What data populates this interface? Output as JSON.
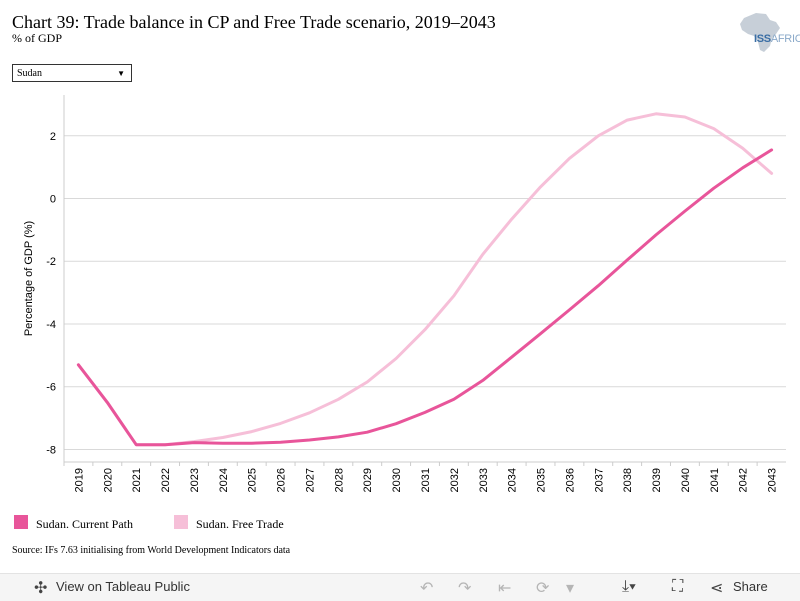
{
  "header": {
    "title": "Chart 39: Trade balance in CP and Free Trade scenario, 2019–2043",
    "subtitle": "% of GDP",
    "logo_text": "ISS",
    "logo_suffix": "AFRICA"
  },
  "filter": {
    "selected": "Sudan"
  },
  "source": "Source: IFs 7.63 initialising from World Development Indicators data",
  "toolbar": {
    "view_label": "View on Tableau Public",
    "share_label": "Share"
  },
  "colors": {
    "current_path": "#e8559a",
    "free_trade": "#f6bfd8",
    "grid": "#d9d9d9"
  },
  "chart_data": {
    "type": "line",
    "ylabel": "Percentage of GDP (%)",
    "xlabel": "",
    "ylim": [
      -8.4,
      3.3
    ],
    "yticks": [
      2,
      0,
      -2,
      -4,
      -6,
      -8
    ],
    "x": [
      2019,
      2020,
      2021,
      2022,
      2023,
      2024,
      2025,
      2026,
      2027,
      2028,
      2029,
      2030,
      2031,
      2032,
      2033,
      2034,
      2035,
      2036,
      2037,
      2038,
      2039,
      2040,
      2041,
      2042,
      2043
    ],
    "grid": true,
    "legend_position": "bottom-left",
    "series": [
      {
        "name": "Sudan. Current Path",
        "values": [
          -5.3,
          -6.5,
          -7.85,
          -7.85,
          -7.78,
          -7.8,
          -7.8,
          -7.77,
          -7.7,
          -7.6,
          -7.45,
          -7.18,
          -6.82,
          -6.4,
          -5.8,
          -5.06,
          -4.31,
          -3.55,
          -2.78,
          -1.96,
          -1.16,
          -0.4,
          0.33,
          0.98,
          1.55
        ]
      },
      {
        "name": "Sudan. Free Trade",
        "values": [
          -5.3,
          -6.5,
          -7.85,
          -7.85,
          -7.75,
          -7.62,
          -7.43,
          -7.17,
          -6.83,
          -6.4,
          -5.85,
          -5.1,
          -4.18,
          -3.1,
          -1.78,
          -0.66,
          0.37,
          1.28,
          2.0,
          2.5,
          2.7,
          2.6,
          2.23,
          1.6,
          0.8
        ]
      }
    ]
  }
}
